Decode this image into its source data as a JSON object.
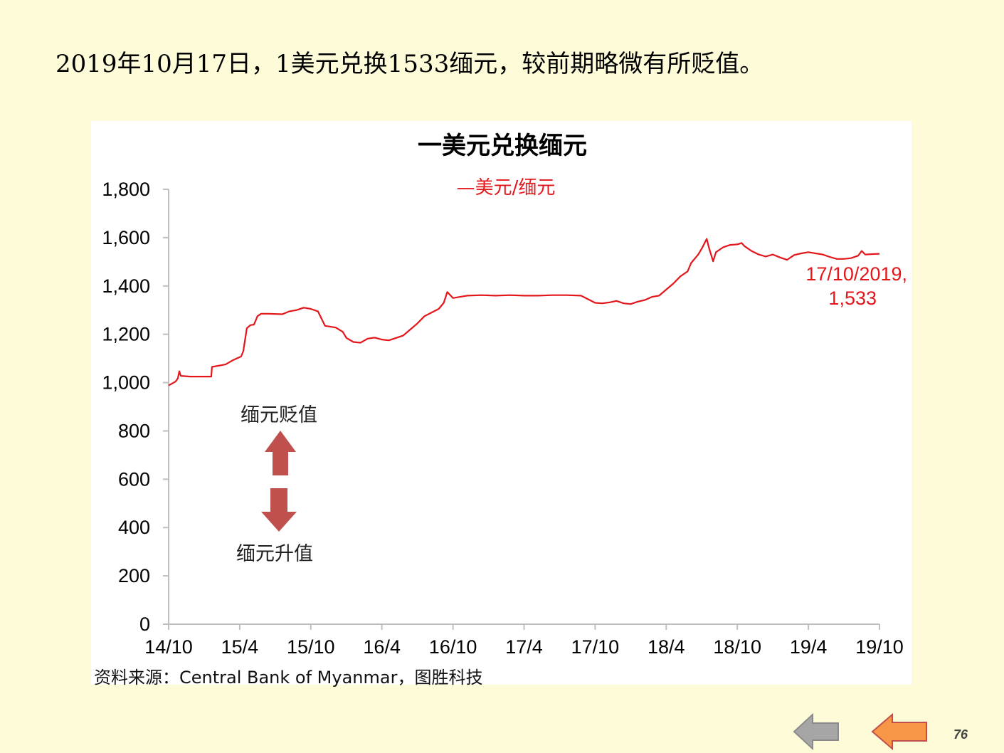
{
  "headline": "2019年10月17日，1美元兑换1533缅元，较前期略微有所贬值。",
  "chart_data": {
    "type": "line",
    "title": "一美元兑换缅元",
    "legend": "—美元/缅元",
    "legend_position": "top-center",
    "series": [
      {
        "name": "美元/缅元",
        "color": "#e3161b",
        "points": [
          [
            0,
            988
          ],
          [
            1,
            1005
          ],
          [
            1.3,
            1018
          ],
          [
            1.5,
            1047
          ],
          [
            1.7,
            1028
          ],
          [
            3,
            1025
          ],
          [
            6,
            1025
          ],
          [
            6.1,
            1065
          ],
          [
            8,
            1075
          ],
          [
            9,
            1092
          ],
          [
            10.2,
            1108
          ],
          [
            10.5,
            1130
          ],
          [
            11,
            1225
          ],
          [
            11.5,
            1238
          ],
          [
            12,
            1240
          ],
          [
            12.5,
            1275
          ],
          [
            13,
            1285
          ],
          [
            14,
            1285
          ],
          [
            16,
            1283
          ],
          [
            17,
            1295
          ],
          [
            18,
            1300
          ],
          [
            19,
            1310
          ],
          [
            20,
            1305
          ],
          [
            21,
            1295
          ],
          [
            21.5,
            1265
          ],
          [
            22,
            1235
          ],
          [
            23.5,
            1228
          ],
          [
            24.5,
            1210
          ],
          [
            25,
            1185
          ],
          [
            26,
            1168
          ],
          [
            27,
            1165
          ],
          [
            28,
            1182
          ],
          [
            29,
            1186
          ],
          [
            30,
            1178
          ],
          [
            31,
            1175
          ],
          [
            32,
            1185
          ],
          [
            33,
            1195
          ],
          [
            34,
            1220
          ],
          [
            35,
            1245
          ],
          [
            36,
            1275
          ],
          [
            37,
            1290
          ],
          [
            38,
            1305
          ],
          [
            38.7,
            1330
          ],
          [
            39.2,
            1375
          ],
          [
            40,
            1350
          ],
          [
            41,
            1355
          ],
          [
            42,
            1360
          ],
          [
            44,
            1362
          ],
          [
            46,
            1360
          ],
          [
            48,
            1362
          ],
          [
            50,
            1360
          ],
          [
            52,
            1360
          ],
          [
            54,
            1362
          ],
          [
            56,
            1362
          ],
          [
            58,
            1360
          ],
          [
            59,
            1345
          ],
          [
            60,
            1330
          ],
          [
            61,
            1328
          ],
          [
            62,
            1332
          ],
          [
            63,
            1338
          ],
          [
            64,
            1328
          ],
          [
            65,
            1325
          ],
          [
            66,
            1335
          ],
          [
            67,
            1342
          ],
          [
            68,
            1355
          ],
          [
            69,
            1360
          ],
          [
            70,
            1385
          ],
          [
            71,
            1410
          ],
          [
            72,
            1440
          ],
          [
            73,
            1460
          ],
          [
            73.5,
            1495
          ],
          [
            74.5,
            1530
          ],
          [
            75,
            1555
          ],
          [
            75.7,
            1595
          ],
          [
            76,
            1560
          ],
          [
            76.6,
            1502
          ],
          [
            77,
            1540
          ],
          [
            78,
            1560
          ],
          [
            79,
            1570
          ],
          [
            80,
            1572
          ],
          [
            80.6,
            1578
          ],
          [
            81,
            1565
          ],
          [
            82,
            1545
          ],
          [
            83,
            1530
          ],
          [
            84,
            1522
          ],
          [
            85,
            1530
          ],
          [
            86,
            1518
          ],
          [
            87,
            1508
          ],
          [
            88,
            1528
          ],
          [
            89,
            1535
          ],
          [
            90,
            1540
          ],
          [
            91,
            1535
          ],
          [
            92,
            1530
          ],
          [
            93,
            1520
          ],
          [
            94,
            1512
          ],
          [
            95,
            1512
          ],
          [
            96,
            1515
          ],
          [
            97,
            1525
          ],
          [
            97.5,
            1545
          ],
          [
            98,
            1530
          ],
          [
            99,
            1532
          ],
          [
            100,
            1533
          ]
        ]
      }
    ],
    "x_tick_labels": [
      "14/10",
      "15/4",
      "15/10",
      "16/4",
      "16/10",
      "17/4",
      "17/10",
      "18/4",
      "18/10",
      "19/4",
      "19/10"
    ],
    "x_ticks_index": [
      0,
      10,
      20,
      30,
      40,
      50,
      60,
      70,
      80,
      90,
      100
    ],
    "xlim": [
      0,
      100
    ],
    "ylim": [
      0,
      1800
    ],
    "y_ticks": [
      0,
      200,
      400,
      600,
      800,
      1000,
      1200,
      1400,
      1600,
      1800
    ],
    "y_tick_labels": [
      "0",
      "200",
      "400",
      "600",
      "800",
      "1,000",
      "1,200",
      "1,400",
      "1,600",
      "1,800"
    ],
    "grid": false,
    "end_label_date": "17/10/2019,",
    "end_label_value": "1,533",
    "annotation_up": "缅元贬值",
    "annotation_down": "缅元升值",
    "arrow_color": "#c0504d"
  },
  "source_note": "资料来源：Central Bank of Myanmar，图胜科技",
  "page_number": "76",
  "nav": {
    "back_color": "#a6a6a6",
    "prev_color": "#f79646"
  }
}
